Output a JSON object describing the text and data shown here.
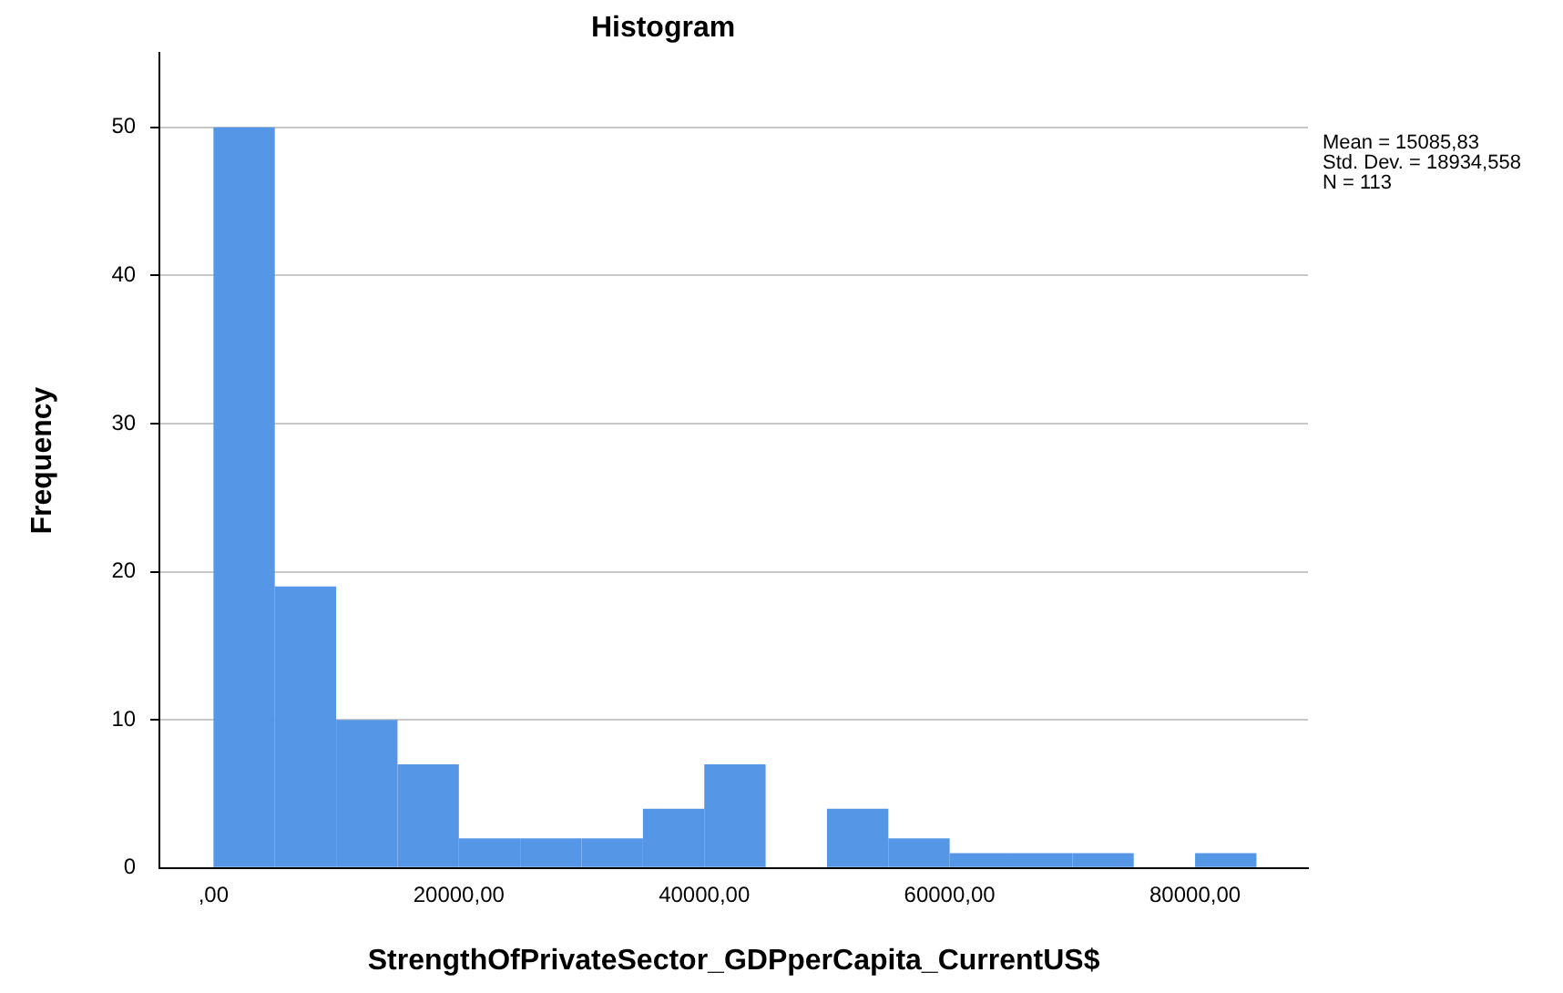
{
  "chart_data": {
    "type": "histogram",
    "title": "Histogram",
    "xlabel": "StrengthOfPrivateSector_GDPperCapita_CurrentUS$",
    "ylabel": "Frequency",
    "bins": [
      0,
      5000,
      10000,
      15000,
      20000,
      25000,
      30000,
      35000,
      40000,
      45000,
      50000,
      55000,
      60000,
      65000,
      70000,
      75000,
      80000,
      85000
    ],
    "values": [
      50,
      19,
      10,
      7,
      2,
      2,
      2,
      4,
      7,
      0,
      4,
      2,
      1,
      1,
      1,
      0,
      1
    ],
    "color": "#5596e6",
    "xlim": [
      -4400,
      89200
    ],
    "xticks": [
      {
        "value": 0,
        "label": ",00"
      },
      {
        "value": 20000,
        "label": "20000,00"
      },
      {
        "value": 40000,
        "label": "40000,00"
      },
      {
        "value": 60000,
        "label": "60000,00"
      },
      {
        "value": 80000,
        "label": "80000,00"
      }
    ],
    "ylim": [
      0,
      55
    ],
    "yticks": [
      0,
      10,
      20,
      30,
      40,
      50
    ],
    "grid": "y",
    "annotations": [
      "Mean = 15085,83",
      "Std. Dev. = 18934,558",
      "N = 113"
    ]
  }
}
